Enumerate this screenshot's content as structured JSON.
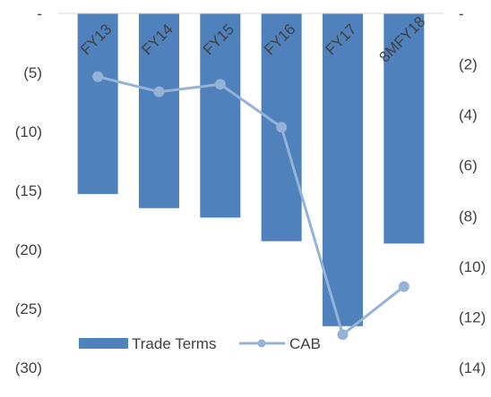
{
  "chart_data": {
    "type": "bar",
    "categories": [
      "FY13",
      "FY14",
      "FY15",
      "FY16",
      "FY17",
      "8MFY18"
    ],
    "series": [
      {
        "name": "Trade Terms",
        "type": "bar",
        "axis": "left",
        "color": "#4f81bd",
        "values": [
          -15.3,
          -16.5,
          -17.3,
          -19.3,
          -26.5,
          -19.5
        ]
      },
      {
        "name": "CAB",
        "type": "line",
        "axis": "right",
        "color": "#95b3d7",
        "values": [
          -2.5,
          -3.1,
          -2.8,
          -4.5,
          -12.7,
          -10.8
        ]
      }
    ],
    "left_axis": {
      "range": [
        -30,
        0
      ],
      "ticks": [
        0,
        -5,
        -10,
        -15,
        -20,
        -25,
        -30
      ],
      "tick_labels": [
        "-",
        "(5)",
        "(10)",
        "(15)",
        "(20)",
        "(25)",
        "(30)"
      ]
    },
    "right_axis": {
      "range": [
        -14,
        0
      ],
      "ticks": [
        0,
        -2,
        -4,
        -6,
        -8,
        -10,
        -12,
        -14
      ],
      "tick_labels": [
        "-",
        "(2)",
        "(4)",
        "(6)",
        "(8)",
        "(10)",
        "(12)",
        "(14)"
      ]
    },
    "legend": {
      "position": "bottom-left",
      "items": [
        "Trade Terms",
        "CAB"
      ]
    },
    "grid": false,
    "title": "",
    "xlabel": "",
    "ylabel": ""
  }
}
